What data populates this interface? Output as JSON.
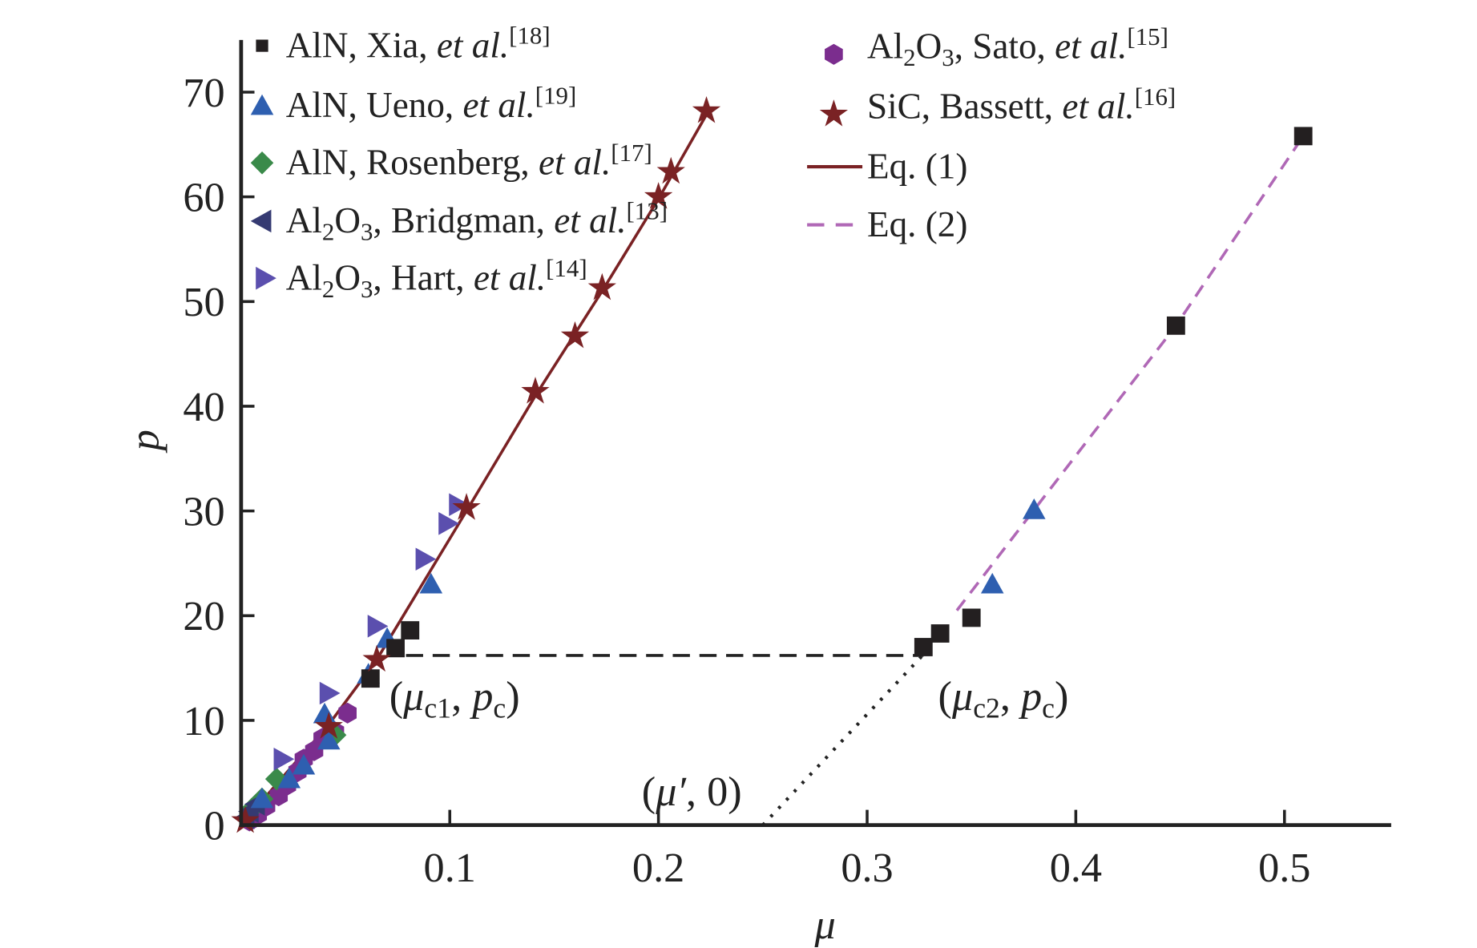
{
  "chart_data": {
    "type": "scatter",
    "xlabel": "μ",
    "ylabel": "p",
    "xlim": [
      0,
      0.551
    ],
    "ylim": [
      0,
      75
    ],
    "xticks": [
      "0.1",
      "0.2",
      "0.3",
      "0.4",
      "0.5"
    ],
    "xtick_values": [
      0.1,
      0.2,
      0.3,
      0.4,
      0.5
    ],
    "yticks": [
      "0",
      "10",
      "20",
      "30",
      "40",
      "50",
      "60",
      "70"
    ],
    "ytick_values": [
      0,
      10,
      20,
      30,
      40,
      50,
      60,
      70
    ],
    "grid": false,
    "legend_placement": "top",
    "series": [
      {
        "name": "AlN, Xia, et al.[18]",
        "label": "AlN, Xia, ",
        "italic": "et al.",
        "ref": "[18]",
        "marker": "square",
        "color": "#231f20",
        "x": [
          0.509,
          0.448,
          0.35,
          0.335,
          0.327,
          0.081,
          0.074,
          0.062
        ],
        "y": [
          65.8,
          47.7,
          19.8,
          18.3,
          17.0,
          18.6,
          16.9,
          14.0
        ]
      },
      {
        "name": "AlN, Ueno, et al.[19]",
        "label": "AlN, Ueno, ",
        "italic": "et al.",
        "ref": "[19]",
        "marker": "triangle-up",
        "color": "#2e5fb0",
        "x": [
          0.38,
          0.36,
          0.091,
          0.07,
          0.061,
          0.04,
          0.042,
          0.03,
          0.023,
          0.01
        ],
        "y": [
          30.1,
          23.0,
          23.0,
          17.8,
          14.4,
          10.6,
          8.1,
          5.7,
          4.4,
          2.5
        ]
      },
      {
        "name": "AlN, Rosenberg, et al.[17]",
        "label": "AlN, Rosenberg, ",
        "italic": "et al.",
        "ref": "[17]",
        "marker": "diamond",
        "color": "#3a8a4a",
        "x": [
          0.045,
          0.017,
          0.01,
          0.005
        ],
        "y": [
          8.6,
          4.4,
          2.5,
          1.5
        ]
      },
      {
        "name": "Al2O3, Bridgman, et al.[13]",
        "label": "Al₂O₃, Bridgman, ",
        "italic": "et al.",
        "ref": "[13]",
        "marker": "triangle-left",
        "color": "#353a72",
        "x": [
          0.007,
          0.004,
          0.002
        ],
        "y": [
          2.0,
          1.3,
          0.7
        ]
      },
      {
        "name": "Al2O3, Hart, et al.[14]",
        "label": "Al₂O₃, Hart, ",
        "italic": "et al.",
        "ref": "[14]",
        "marker": "triangle-right",
        "color": "#5b4fae",
        "x": [
          0.104,
          0.099,
          0.088,
          0.065,
          0.042,
          0.02
        ],
        "y": [
          30.6,
          28.8,
          25.4,
          19.0,
          12.6,
          6.3
        ]
      },
      {
        "name": "Al2O3, Sato, et al.[15]",
        "label": "Al₂O₃, Sato, ",
        "italic": "et al.",
        "ref": "[15]",
        "marker": "hexagon",
        "color": "#7b2d8e",
        "x": [
          0.051,
          0.045,
          0.039,
          0.035,
          0.03,
          0.027,
          0.022,
          0.018,
          0.012,
          0.008,
          0.004
        ],
        "y": [
          10.7,
          8.9,
          8.3,
          7.1,
          6.3,
          5.1,
          3.8,
          2.8,
          1.8,
          1.0,
          0.4
        ]
      },
      {
        "name": "SiC, Bassett, et al.[16]",
        "label": "SiC, Bassett, ",
        "italic": "et al.",
        "ref": "[16]",
        "marker": "star",
        "color": "#7a2224",
        "x": [
          0.223,
          0.206,
          0.2,
          0.173,
          0.16,
          0.141,
          0.108,
          0.065,
          0.042,
          0.002
        ],
        "y": [
          68.2,
          62.4,
          60.0,
          51.3,
          46.7,
          41.4,
          30.3,
          15.8,
          9.4,
          0.4
        ]
      }
    ],
    "lines": [
      {
        "name": "Eq. (1)",
        "style": "solid",
        "color": "#7a2224",
        "x": [
          0,
          0.02,
          0.042,
          0.065,
          0.108,
          0.141,
          0.173,
          0.2,
          0.224
        ],
        "y": [
          0,
          4.6,
          9.6,
          15.8,
          30.0,
          41.0,
          51.0,
          59.8,
          68.2
        ]
      },
      {
        "name": "Eq. (2)",
        "style": "dashed",
        "color": "#b068b6",
        "x": [
          0.343,
          0.38,
          0.448,
          0.509
        ],
        "y": [
          20.5,
          30.1,
          47.7,
          65.8
        ]
      },
      {
        "name": "critical-pressure",
        "style": "dashed",
        "color": "#222222",
        "legend": false,
        "x": [
          0.079,
          0.327
        ],
        "y": [
          16.2,
          16.2
        ]
      },
      {
        "name": "extrapolation",
        "style": "dotted",
        "color": "#222222",
        "legend": false,
        "x": [
          0.25,
          0.327
        ],
        "y": [
          0,
          16.3
        ]
      }
    ],
    "annotations": [
      {
        "x": 0.071,
        "y": 11.0,
        "open": "(",
        "sym": "μ",
        "sub": "c1",
        "sep": ", ",
        "sym2": "p",
        "sub2": "c",
        "close": ")"
      },
      {
        "x": 0.334,
        "y": 11.0,
        "open": "(",
        "sym": "μ",
        "sub": "c2",
        "sep": ", ",
        "sym2": "p",
        "sub2": "c",
        "close": ")"
      },
      {
        "x": 0.192,
        "y": 1.9,
        "open": "(",
        "sym": "μ′",
        "sub": "",
        "sep": ", ",
        "sym2": "0",
        "sub2": "",
        "close": ")"
      }
    ]
  }
}
